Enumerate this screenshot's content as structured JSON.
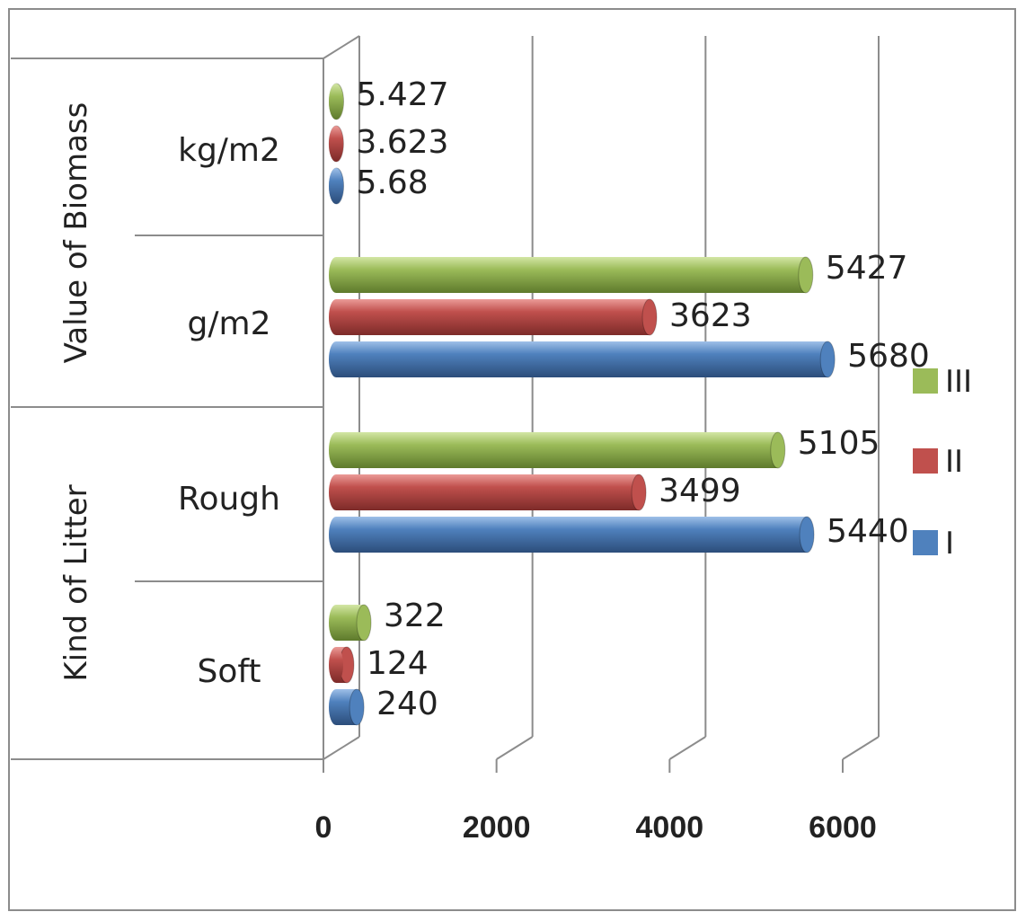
{
  "chart_data": {
    "type": "bar",
    "orientation": "horizontal",
    "style": "3d-cylinder",
    "title": "",
    "xlabel": "",
    "ylabel": "",
    "xlim": [
      0,
      6000
    ],
    "xticks": [
      "0",
      "2000",
      "4000",
      "6000"
    ],
    "grid": true,
    "legend_position": "right",
    "groups": [
      {
        "label": "Kind of Litter",
        "categories": [
          "Soft",
          "Rough"
        ]
      },
      {
        "label": "Value of Biomass",
        "categories": [
          "g/m2",
          "kg/m2"
        ]
      }
    ],
    "categories": [
      "Soft",
      "Rough",
      "g/m2",
      "kg/m2"
    ],
    "series": [
      {
        "name": "I",
        "color": "#4f81bd",
        "values": [
          240,
          5440,
          5680,
          5.68
        ],
        "labels": [
          "240",
          "5440",
          "5680",
          "5.68"
        ]
      },
      {
        "name": "II",
        "color": "#c0504d",
        "values": [
          124,
          3499,
          3623,
          3.623
        ],
        "labels": [
          "124",
          "3499",
          "3623",
          "3.623"
        ]
      },
      {
        "name": "III",
        "color": "#9bbb59",
        "values": [
          322,
          5105,
          5427,
          5.427
        ],
        "labels": [
          "322",
          "5105",
          "5427",
          "5.427"
        ]
      }
    ]
  }
}
